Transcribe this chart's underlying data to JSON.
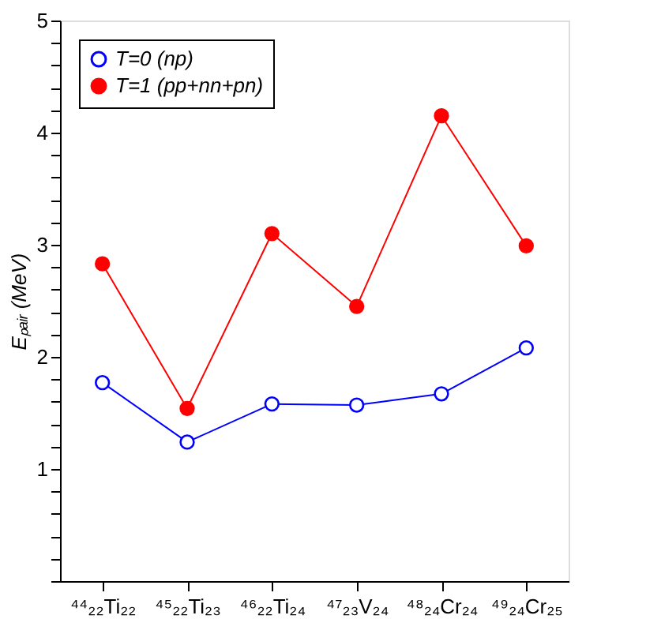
{
  "chart_data": {
    "type": "line",
    "ylabel": "Eₚₐᵢᵣ (MeV)",
    "categories": [
      "⁴⁴₂₂Ti₂₂",
      "⁴⁵₂₂Ti₂₃",
      "⁴⁶₂₂Ti₂₄",
      "⁴⁷₂₃V₂₄",
      "⁴⁸₂₄Cr₂₄",
      "⁴⁹₂₄Cr₂₅"
    ],
    "series": [
      {
        "name": "T=0 (np)",
        "color": "#0000ff",
        "values": [
          1.77,
          1.24,
          1.58,
          1.57,
          1.67,
          2.08
        ]
      },
      {
        "name": "T=1 (pp+nn+pn)",
        "color": "#ff0000",
        "values": [
          2.83,
          1.54,
          3.1,
          2.45,
          4.15,
          2.99
        ]
      }
    ],
    "ylim": [
      0,
      5
    ],
    "yticks": [
      {
        "value": 0,
        "label": null
      },
      {
        "value": 0.2,
        "label": null
      },
      {
        "value": 0.4,
        "label": null
      },
      {
        "value": 0.6,
        "label": null
      },
      {
        "value": 0.8,
        "label": null
      },
      1,
      {
        "value": 1.2,
        "label": null
      },
      {
        "value": 1.4,
        "label": null
      },
      {
        "value": 1.6,
        "label": null
      },
      {
        "value": 1.8,
        "label": null
      },
      2,
      {
        "value": 2.2,
        "label": null
      },
      {
        "value": 2.4,
        "label": null
      },
      {
        "value": 2.6,
        "label": null
      },
      {
        "value": 2.8,
        "label": null
      },
      3,
      {
        "value": 3.2,
        "label": null
      },
      {
        "value": 3.4,
        "label": null
      },
      {
        "value": 3.6,
        "label": null
      },
      {
        "value": 3.8,
        "label": null
      },
      4,
      {
        "value": 4.2,
        "label": null
      },
      {
        "value": 4.4,
        "label": null
      },
      {
        "value": 4.6,
        "label": null
      },
      {
        "value": 4.8,
        "label": null
      },
      5
    ],
    "marker": "circle",
    "line_style": "solid",
    "legend": "top left",
    "grid": false
  }
}
